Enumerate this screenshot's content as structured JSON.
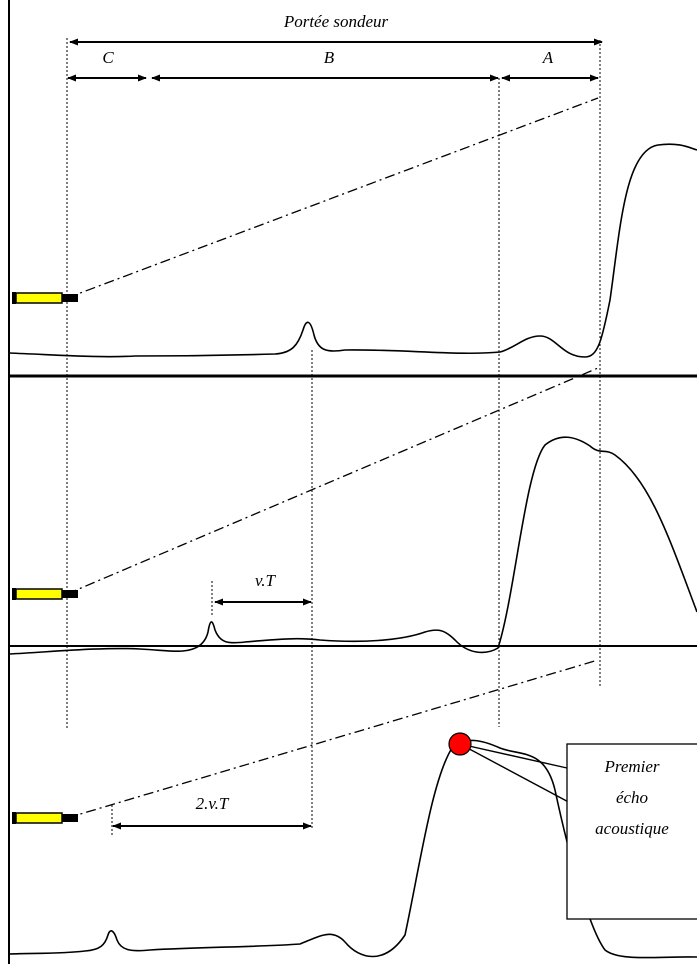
{
  "labels": {
    "range": "Portée sondeur",
    "zone_c": "C",
    "zone_b": "B",
    "zone_a": "A",
    "vt": "v.T",
    "two_vt": "2.v.T",
    "callout_line1": "Premier",
    "callout_line2": "écho",
    "callout_line3": "acoustique"
  },
  "colors": {
    "line": "#000000",
    "transducer_fill": "#ffff00",
    "echo_dot": "#ff0000",
    "background": "#ffffff"
  },
  "icons": {
    "transducer": "sonar-transducer-icon",
    "echo": "echo-point-icon"
  }
}
